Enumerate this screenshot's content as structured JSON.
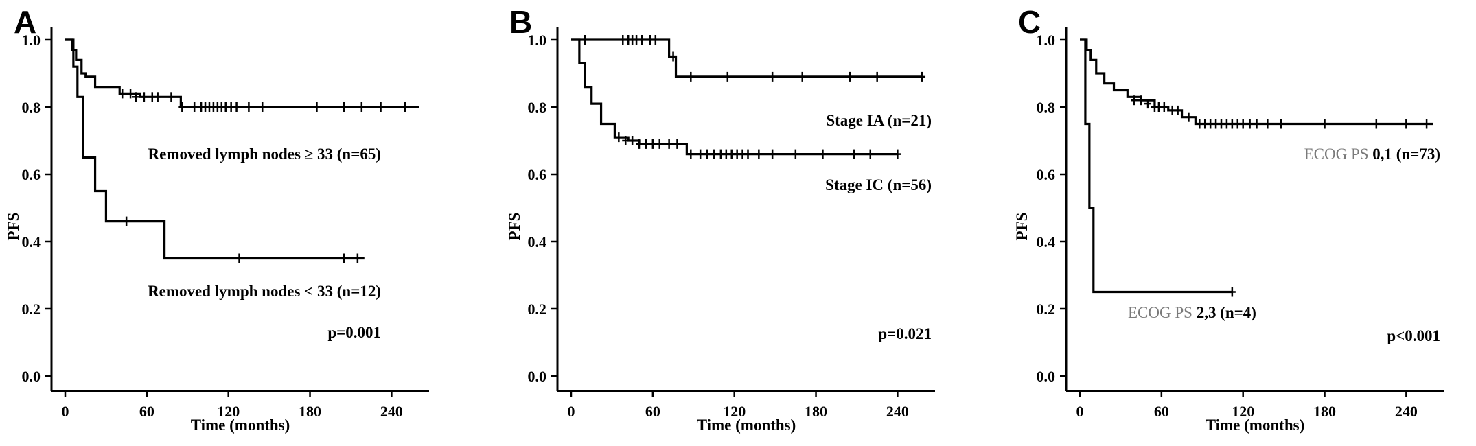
{
  "chart_data": [
    {
      "type": "line",
      "panel_label": "A",
      "xlabel": "Time (months)",
      "ylabel": "PFS",
      "xlim": [
        0,
        260
      ],
      "ylim": [
        0,
        1
      ],
      "xticks": [
        0,
        60,
        120,
        180,
        240
      ],
      "yticks": [
        0.0,
        0.2,
        0.4,
        0.6,
        0.8,
        1.0
      ],
      "series": [
        {
          "name": "Removed lymph nodes ≥ 33 (n=65)",
          "steps": [
            [
              0,
              1.0
            ],
            [
              5,
              0.97
            ],
            [
              8,
              0.94
            ],
            [
              12,
              0.9
            ],
            [
              15,
              0.89
            ],
            [
              22,
              0.86
            ],
            [
              40,
              0.84
            ],
            [
              55,
              0.83
            ],
            [
              85,
              0.8
            ],
            [
              260,
              0.8
            ]
          ],
          "censored": [
            [
              42,
              0.84
            ],
            [
              48,
              0.84
            ],
            [
              52,
              0.83
            ],
            [
              58,
              0.83
            ],
            [
              64,
              0.83
            ],
            [
              68,
              0.83
            ],
            [
              78,
              0.83
            ],
            [
              86,
              0.8
            ],
            [
              95,
              0.8
            ],
            [
              100,
              0.8
            ],
            [
              103,
              0.8
            ],
            [
              106,
              0.8
            ],
            [
              109,
              0.8
            ],
            [
              112,
              0.8
            ],
            [
              115,
              0.8
            ],
            [
              118,
              0.8
            ],
            [
              122,
              0.8
            ],
            [
              126,
              0.8
            ],
            [
              135,
              0.8
            ],
            [
              145,
              0.8
            ],
            [
              185,
              0.8
            ],
            [
              205,
              0.8
            ],
            [
              218,
              0.8
            ],
            [
              232,
              0.8
            ],
            [
              250,
              0.8
            ]
          ]
        },
        {
          "name": "Removed lymph nodes < 33 (n=12)",
          "steps": [
            [
              0,
              1.0
            ],
            [
              6,
              0.92
            ],
            [
              9,
              0.83
            ],
            [
              13,
              0.65
            ],
            [
              22,
              0.55
            ],
            [
              30,
              0.46
            ],
            [
              73,
              0.35
            ],
            [
              220,
              0.35
            ]
          ],
          "censored": [
            [
              45,
              0.46
            ],
            [
              128,
              0.35
            ],
            [
              205,
              0.35
            ],
            [
              215,
              0.35
            ]
          ]
        }
      ],
      "annotation": "p=0.001"
    },
    {
      "type": "line",
      "panel_label": "B",
      "xlabel": "Time (months)",
      "ylabel": "PFS",
      "xlim": [
        0,
        260
      ],
      "ylim": [
        0,
        1
      ],
      "xticks": [
        0,
        60,
        120,
        180,
        240
      ],
      "yticks": [
        0.0,
        0.2,
        0.4,
        0.6,
        0.8,
        1.0
      ],
      "series": [
        {
          "name": "Stage IA (n=21)",
          "steps": [
            [
              0,
              1.0
            ],
            [
              72,
              0.95
            ],
            [
              77,
              0.89
            ],
            [
              258,
              0.89
            ]
          ],
          "censored": [
            [
              10,
              1.0
            ],
            [
              38,
              1.0
            ],
            [
              42,
              1.0
            ],
            [
              45,
              1.0
            ],
            [
              48,
              1.0
            ],
            [
              52,
              1.0
            ],
            [
              58,
              1.0
            ],
            [
              62,
              1.0
            ],
            [
              75,
              0.95
            ],
            [
              88,
              0.89
            ],
            [
              115,
              0.89
            ],
            [
              148,
              0.89
            ],
            [
              170,
              0.89
            ],
            [
              205,
              0.89
            ],
            [
              225,
              0.89
            ],
            [
              258,
              0.89
            ]
          ]
        },
        {
          "name": "Stage IC (n=56)",
          "steps": [
            [
              0,
              1.0
            ],
            [
              6,
              0.93
            ],
            [
              10,
              0.86
            ],
            [
              15,
              0.81
            ],
            [
              22,
              0.75
            ],
            [
              32,
              0.71
            ],
            [
              42,
              0.7
            ],
            [
              50,
              0.69
            ],
            [
              85,
              0.66
            ],
            [
              240,
              0.66
            ]
          ],
          "censored": [
            [
              35,
              0.71
            ],
            [
              40,
              0.7
            ],
            [
              45,
              0.7
            ],
            [
              50,
              0.69
            ],
            [
              55,
              0.69
            ],
            [
              60,
              0.69
            ],
            [
              65,
              0.69
            ],
            [
              72,
              0.69
            ],
            [
              78,
              0.69
            ],
            [
              88,
              0.66
            ],
            [
              95,
              0.66
            ],
            [
              100,
              0.66
            ],
            [
              105,
              0.66
            ],
            [
              110,
              0.66
            ],
            [
              114,
              0.66
            ],
            [
              118,
              0.66
            ],
            [
              122,
              0.66
            ],
            [
              126,
              0.66
            ],
            [
              130,
              0.66
            ],
            [
              138,
              0.66
            ],
            [
              148,
              0.66
            ],
            [
              165,
              0.66
            ],
            [
              185,
              0.66
            ],
            [
              208,
              0.66
            ],
            [
              220,
              0.66
            ],
            [
              240,
              0.66
            ]
          ]
        }
      ],
      "annotation": "p=0.021"
    },
    {
      "type": "line",
      "panel_label": "C",
      "xlabel": "Time (months)",
      "ylabel": "PFS",
      "xlim": [
        0,
        260
      ],
      "ylim": [
        0,
        1
      ],
      "xticks": [
        0,
        60,
        120,
        180,
        240
      ],
      "yticks": [
        0.0,
        0.2,
        0.4,
        0.6,
        0.8,
        1.0
      ],
      "series": [
        {
          "name": "ECOG PS 0,1 (n=73)",
          "name_parts": [
            "ECOG PS ",
            "0,1 (n=73)"
          ],
          "steps": [
            [
              0,
              1.0
            ],
            [
              5,
              0.97
            ],
            [
              8,
              0.94
            ],
            [
              12,
              0.9
            ],
            [
              18,
              0.87
            ],
            [
              25,
              0.85
            ],
            [
              35,
              0.83
            ],
            [
              45,
              0.82
            ],
            [
              55,
              0.8
            ],
            [
              65,
              0.79
            ],
            [
              75,
              0.77
            ],
            [
              85,
              0.75
            ],
            [
              260,
              0.75
            ]
          ],
          "censored": [
            [
              40,
              0.82
            ],
            [
              45,
              0.82
            ],
            [
              50,
              0.81
            ],
            [
              55,
              0.8
            ],
            [
              58,
              0.8
            ],
            [
              62,
              0.8
            ],
            [
              68,
              0.79
            ],
            [
              72,
              0.79
            ],
            [
              80,
              0.77
            ],
            [
              88,
              0.75
            ],
            [
              92,
              0.75
            ],
            [
              96,
              0.75
            ],
            [
              100,
              0.75
            ],
            [
              104,
              0.75
            ],
            [
              108,
              0.75
            ],
            [
              112,
              0.75
            ],
            [
              116,
              0.75
            ],
            [
              120,
              0.75
            ],
            [
              125,
              0.75
            ],
            [
              130,
              0.75
            ],
            [
              138,
              0.75
            ],
            [
              148,
              0.75
            ],
            [
              180,
              0.75
            ],
            [
              218,
              0.75
            ],
            [
              240,
              0.75
            ],
            [
              255,
              0.75
            ]
          ]
        },
        {
          "name": "ECOG PS 2,3 (n=4)",
          "name_parts": [
            "ECOG PS ",
            "2,3 (n=4)"
          ],
          "steps": [
            [
              0,
              1.0
            ],
            [
              4,
              0.75
            ],
            [
              7,
              0.5
            ],
            [
              10,
              0.25
            ],
            [
              112,
              0.25
            ]
          ],
          "censored": [
            [
              112,
              0.25
            ]
          ]
        }
      ],
      "annotation": "p<0.001"
    }
  ]
}
